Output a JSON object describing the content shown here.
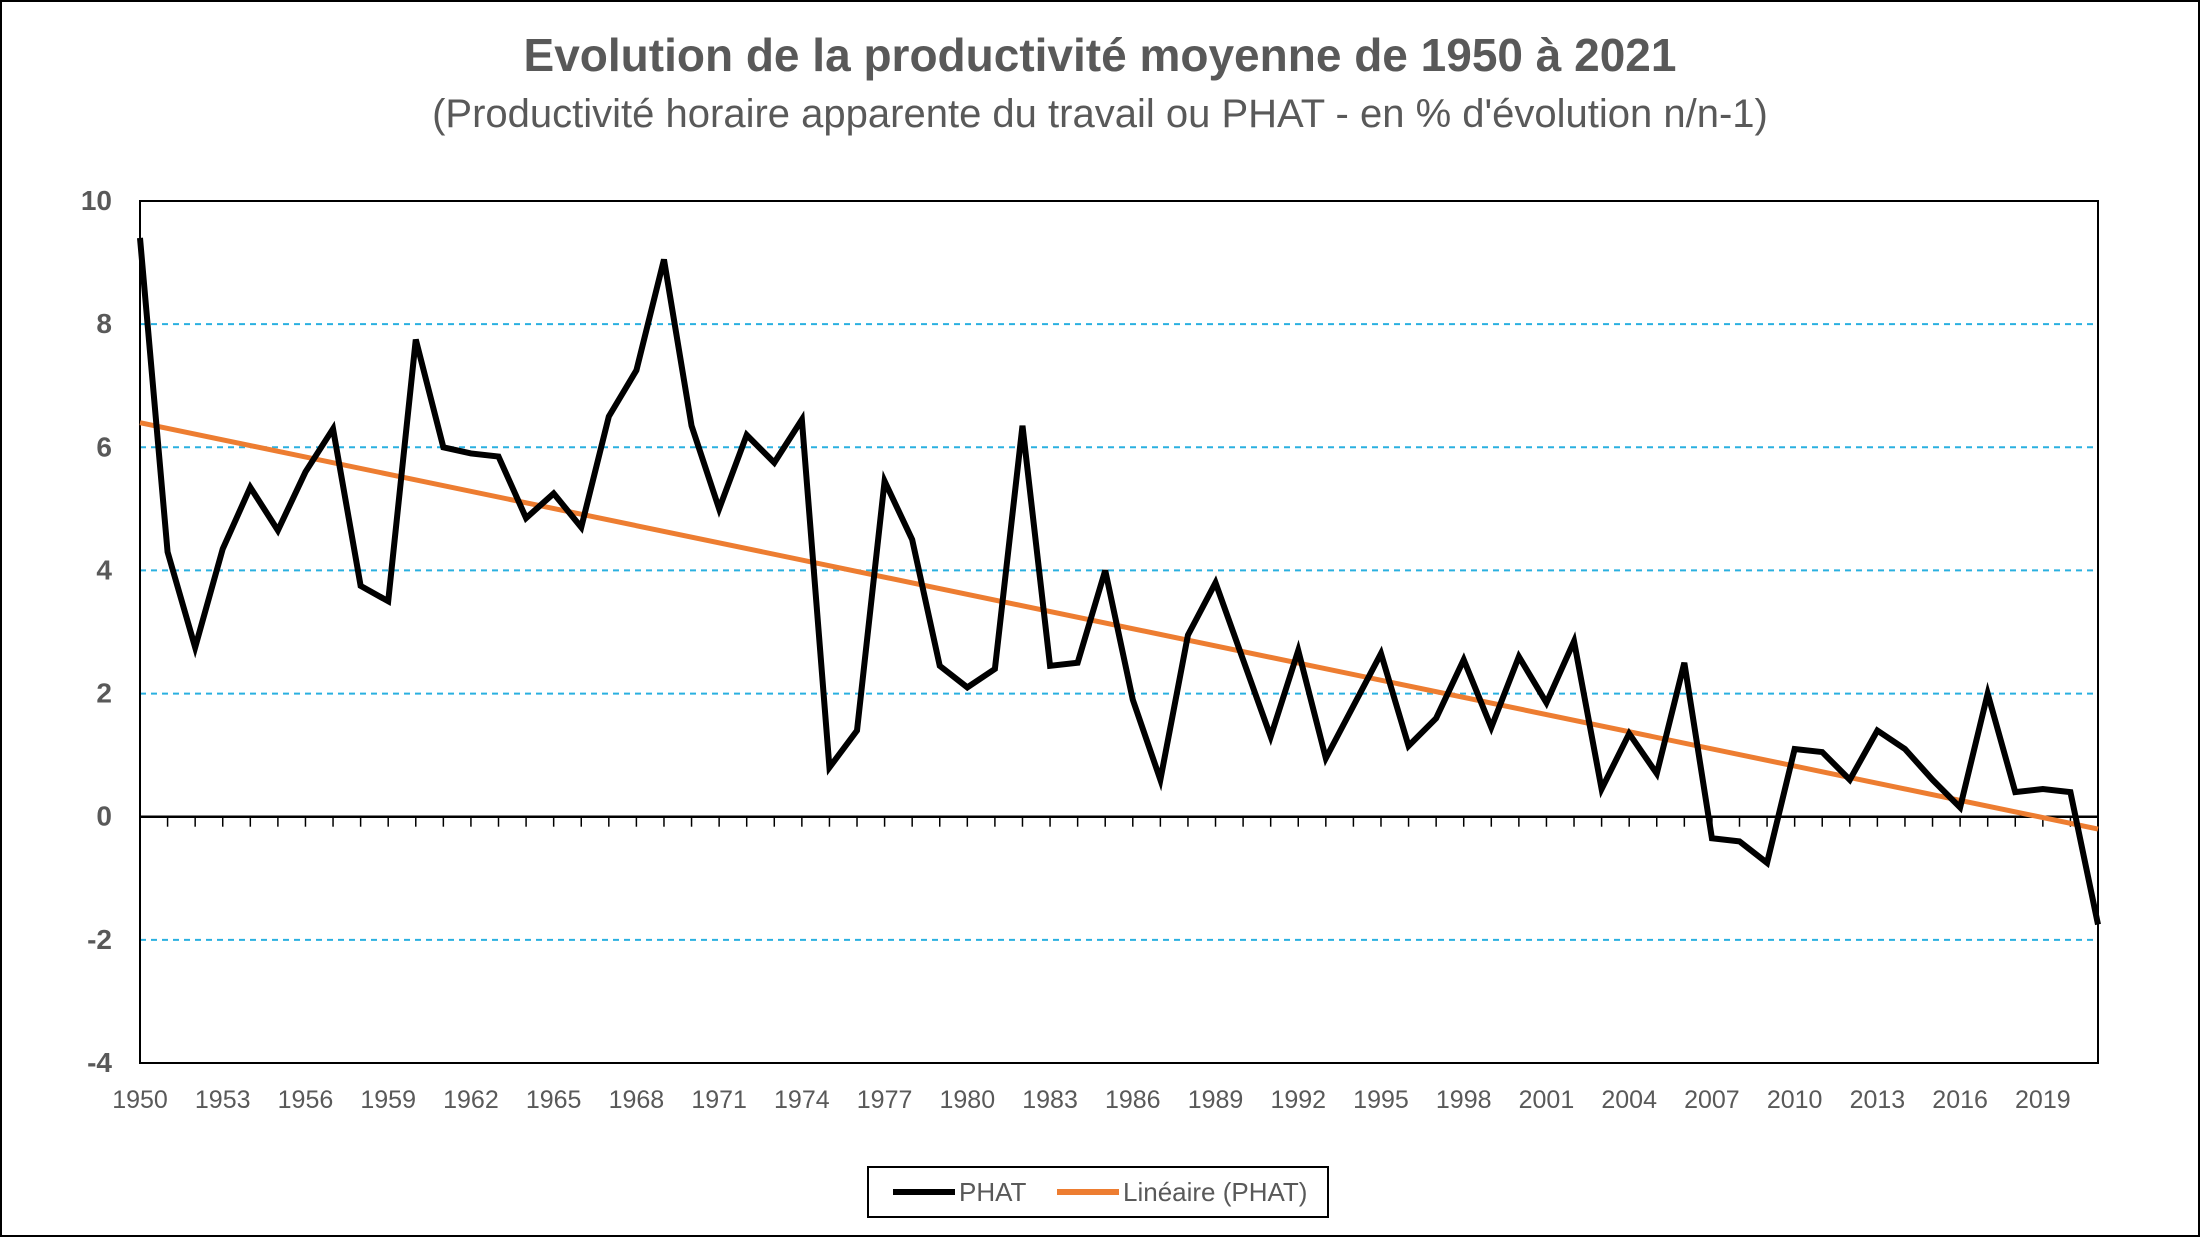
{
  "chart_data": {
    "type": "line",
    "title": "Evolution de la productivité moyenne de 1950 à 2021",
    "subtitle": "(Productivité horaire apparente du travail ou PHAT - en % d'évolution n/n-1)",
    "xlabel": "",
    "ylabel": "",
    "ylim": [
      -4,
      10
    ],
    "yticks": [
      10,
      8,
      6,
      4,
      2,
      0,
      -2,
      -4
    ],
    "xticks": [
      "1950",
      "1953",
      "1956",
      "1959",
      "1962",
      "1965",
      "1968",
      "1971",
      "1974",
      "1977",
      "1980",
      "1983",
      "1986",
      "1989",
      "1992",
      "1995",
      "1998",
      "2001",
      "2004",
      "2007",
      "2010",
      "2013",
      "2016",
      "2019"
    ],
    "grid": "horizontal dashed",
    "legend_position": "bottom",
    "x": [
      1950,
      1951,
      1952,
      1953,
      1954,
      1955,
      1956,
      1957,
      1958,
      1959,
      1960,
      1961,
      1962,
      1963,
      1964,
      1965,
      1966,
      1967,
      1968,
      1969,
      1970,
      1971,
      1972,
      1973,
      1974,
      1975,
      1976,
      1977,
      1978,
      1979,
      1980,
      1981,
      1982,
      1983,
      1984,
      1985,
      1986,
      1987,
      1988,
      1989,
      1990,
      1991,
      1992,
      1993,
      1994,
      1995,
      1996,
      1997,
      1998,
      1999,
      2000,
      2001,
      2002,
      2003,
      2004,
      2005,
      2006,
      2007,
      2008,
      2009,
      2010,
      2011,
      2012,
      2013,
      2014,
      2015,
      2016,
      2017,
      2018,
      2019,
      2020,
      2021
    ],
    "series": [
      {
        "name": "PHAT",
        "color": "#000000",
        "values": [
          9.4,
          4.3,
          2.75,
          4.35,
          5.35,
          4.65,
          5.6,
          6.3,
          3.75,
          3.5,
          7.75,
          6.0,
          5.9,
          5.85,
          4.85,
          5.25,
          4.7,
          6.5,
          7.25,
          9.05,
          6.35,
          5.0,
          6.2,
          5.75,
          6.45,
          0.8,
          1.4,
          5.45,
          4.5,
          2.45,
          2.1,
          2.4,
          6.35,
          2.45,
          2.5,
          4.0,
          1.9,
          0.6,
          2.95,
          3.8,
          2.55,
          1.3,
          2.7,
          0.95,
          1.8,
          2.65,
          1.15,
          1.6,
          2.55,
          1.45,
          2.6,
          1.85,
          2.85,
          0.45,
          1.35,
          0.7,
          2.5,
          -0.35,
          -0.4,
          -0.75,
          1.1,
          1.05,
          0.6,
          1.4,
          1.1,
          0.6,
          0.15,
          2.0,
          0.4,
          0.45,
          0.4,
          -1.75
        ]
      },
      {
        "name": "Linéaire (PHAT)",
        "color": "#ED7D31",
        "trend": true,
        "start": 6.4,
        "end": -0.2
      }
    ],
    "colors": {
      "grid": "#2AB0E0",
      "axis": "#000000",
      "text": "#595959"
    }
  }
}
